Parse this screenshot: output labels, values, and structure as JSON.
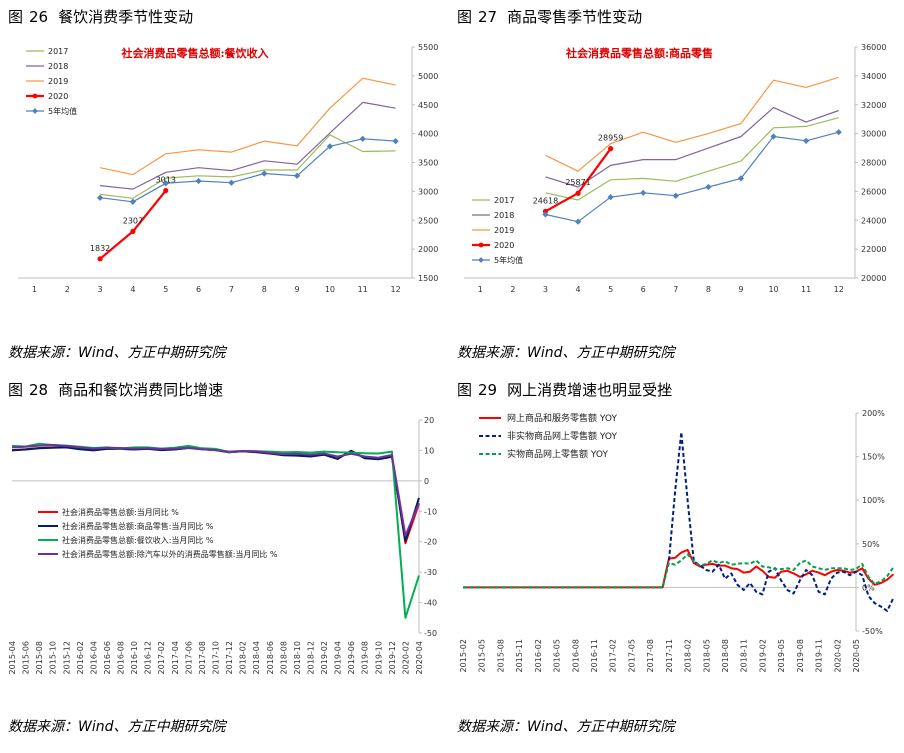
{
  "figures": [
    {
      "prefix": "图",
      "number": "26",
      "title": "餐饮消费季节性变动",
      "source": "数据来源：Wind、方正中期研究院"
    },
    {
      "prefix": "图",
      "number": "27",
      "title": "商品零售季节性变动",
      "source": "数据来源：Wind、方正中期研究院"
    },
    {
      "prefix": "图",
      "number": "28",
      "title": "商品和餐饮消费同比增速",
      "source": "数据来源：Wind、方正中期研究院"
    },
    {
      "prefix": "图",
      "number": "29",
      "title": "网上消费增速也明显受挫",
      "source": "数据来源：Wind、方正中期研究院"
    }
  ],
  "chart_data": [
    {
      "type": "line",
      "title": "社会消费品零售总额:餐饮收入",
      "x": [
        1,
        2,
        3,
        4,
        5,
        6,
        7,
        8,
        9,
        10,
        11,
        12
      ],
      "ylim": [
        1500,
        5500
      ],
      "yticks": [
        1500,
        2000,
        2500,
        3000,
        3500,
        4000,
        4500,
        5000,
        5500
      ],
      "y_axis_side": "right",
      "legend_position": "top-left",
      "series": [
        {
          "name": "2017",
          "color": "#9bbb59",
          "values": [
            null,
            null,
            2950,
            2880,
            3230,
            3270,
            3250,
            3370,
            3370,
            3980,
            3690,
            3700
          ]
        },
        {
          "name": "2018",
          "color": "#8064a2",
          "values": [
            null,
            null,
            3100,
            3040,
            3330,
            3410,
            3360,
            3530,
            3470,
            4010,
            4540,
            4440
          ]
        },
        {
          "name": "2019",
          "color": "#f79646",
          "values": [
            null,
            null,
            3410,
            3290,
            3650,
            3720,
            3680,
            3870,
            3790,
            4440,
            4960,
            4840
          ]
        },
        {
          "name": "2020",
          "color": "#ff0000",
          "values": [
            null,
            null,
            1832,
            2307,
            3013,
            null,
            null,
            null,
            null,
            null,
            null,
            null
          ],
          "labels": [
            "1832",
            "2307",
            "3013"
          ]
        },
        {
          "name": "5年均值",
          "color": "#4f81bd",
          "values": [
            null,
            null,
            2890,
            2820,
            3140,
            3180,
            3150,
            3310,
            3270,
            3780,
            3910,
            3870
          ]
        }
      ]
    },
    {
      "type": "line",
      "title": "社会消费品零售总额:商品零售",
      "x": [
        1,
        2,
        3,
        4,
        5,
        6,
        7,
        8,
        9,
        10,
        11,
        12
      ],
      "ylim": [
        20000,
        36000
      ],
      "yticks": [
        20000,
        22000,
        24000,
        26000,
        28000,
        30000,
        32000,
        34000,
        36000
      ],
      "y_axis_side": "right",
      "legend_position": "bottom-left",
      "series": [
        {
          "name": "2017",
          "color": "#9bbb59",
          "values": [
            null,
            null,
            25900,
            25400,
            26800,
            26900,
            26700,
            27400,
            28100,
            30400,
            30500,
            31100
          ]
        },
        {
          "name": "2018",
          "color": "#8064a2",
          "values": [
            null,
            null,
            27000,
            26300,
            27800,
            28200,
            28200,
            29000,
            29800,
            31800,
            30800,
            31600
          ]
        },
        {
          "name": "2019",
          "color": "#f79646",
          "values": [
            null,
            null,
            28500,
            27400,
            29300,
            30100,
            29400,
            30000,
            30700,
            33700,
            33200,
            33900
          ]
        },
        {
          "name": "2020",
          "color": "#ff0000",
          "values": [
            null,
            null,
            24618,
            25871,
            28959,
            null,
            null,
            null,
            null,
            null,
            null,
            null
          ],
          "labels": [
            "24618",
            "25871",
            "28959"
          ]
        },
        {
          "name": "5年均值",
          "color": "#4f81bd",
          "values": [
            null,
            null,
            24400,
            23900,
            25600,
            25900,
            25700,
            26300,
            26900,
            29800,
            29500,
            30100
          ]
        }
      ]
    },
    {
      "type": "line",
      "title": "",
      "x_labels": [
        "2015-04",
        "2015-06",
        "2015-08",
        "2015-10",
        "2015-12",
        "2016-02",
        "2016-04",
        "2016-06",
        "2016-08",
        "2016-10",
        "2016-12",
        "2017-02",
        "2017-04",
        "2017-06",
        "2017-08",
        "2017-10",
        "2017-12",
        "2018-02",
        "2018-04",
        "2018-06",
        "2018-08",
        "2018-10",
        "2018-12",
        "2019-02",
        "2019-04",
        "2019-06",
        "2019-08",
        "2019-10",
        "2019-12",
        "2020-02",
        "2020-04"
      ],
      "ylim": [
        -50,
        20
      ],
      "yticks": [
        20,
        10,
        0,
        -10,
        -20,
        -30,
        -40,
        -50
      ],
      "y_axis_side": "right",
      "legend_position": "left-middle",
      "series": [
        {
          "name": "社会消费品零售总额:当月同比  %",
          "color": "#ff0000",
          "values": [
            10.1,
            10.4,
            10.8,
            11.0,
            11.1,
            10.5,
            10.1,
            10.6,
            10.6,
            10.5,
            10.7,
            10.4,
            10.6,
            11.0,
            10.5,
            10.2,
            9.4,
            9.7,
            9.4,
            9.0,
            8.6,
            8.6,
            8.2,
            8.7,
            7.2,
            9.8,
            7.5,
            7.2,
            8.0,
            -20.5,
            -7.5
          ]
        },
        {
          "name": "社会消费品零售总额:商品零售:当月同比  %",
          "color": "#002060",
          "values": [
            10.0,
            10.3,
            10.7,
            10.9,
            11.0,
            10.4,
            10.0,
            10.5,
            10.5,
            10.3,
            10.5,
            10.1,
            10.3,
            10.8,
            10.4,
            10.1,
            9.4,
            9.7,
            9.5,
            9.0,
            8.4,
            8.3,
            8.0,
            8.6,
            7.2,
            9.9,
            7.4,
            7.1,
            7.9,
            -19.8,
            -5.6
          ]
        },
        {
          "name": "社会消费品零售总额:餐饮收入:当月同比  %",
          "color": "#00b050",
          "values": [
            11.5,
            11.3,
            12.2,
            11.8,
            11.6,
            11.2,
            10.8,
            11.0,
            10.6,
            11.0,
            11.0,
            10.6,
            10.9,
            11.5,
            10.7,
            10.5,
            9.5,
            9.8,
            9.7,
            9.6,
            9.4,
            9.5,
            9.3,
            9.6,
            9.4,
            9.3,
            9.1,
            9.0,
            9.6,
            -45.0,
            -31.1
          ]
        },
        {
          "name": "社会消费品零售总额:除汽车以外的消费品零售额:当月同比  %",
          "color": "#7030a0",
          "values": [
            11.0,
            11.2,
            11.6,
            11.8,
            11.5,
            11.0,
            10.6,
            10.9,
            10.8,
            10.6,
            10.7,
            10.5,
            10.6,
            10.9,
            10.4,
            10.1,
            9.6,
            9.8,
            9.7,
            9.2,
            8.8,
            8.9,
            8.6,
            9.0,
            8.0,
            8.9,
            8.0,
            7.6,
            8.5,
            -18.0,
            -7.3
          ]
        }
      ]
    },
    {
      "type": "line",
      "title": "",
      "x_labels": [
        "2015-02",
        "2015-05",
        "2015-08",
        "2015-11",
        "2016-02",
        "2016-05",
        "2016-08",
        "2016-11",
        "2017-02",
        "2017-05",
        "2017-08",
        "2017-11",
        "2018-02",
        "2018-05",
        "2018-08",
        "2018-11",
        "2019-02",
        "2019-05",
        "2019-08",
        "2019-11",
        "2020-02",
        "2020-05"
      ],
      "ylim": [
        -50,
        200
      ],
      "yticks": [
        "200%",
        "150%",
        "100%",
        "50%",
        "0%",
        "-50%"
      ],
      "y_axis_side": "right",
      "legend_position": "top-left",
      "series": [
        {
          "name": "网上商品和服务零售额  YOY",
          "color": "#ff0000",
          "dash": "solid"
        },
        {
          "name": "非实物商品网上零售额  YOY",
          "color": "#002080",
          "dash": "dashed"
        },
        {
          "name": "实物商品网上零售额  YOY",
          "color": "#00a050",
          "dash": "dashed"
        }
      ]
    }
  ]
}
